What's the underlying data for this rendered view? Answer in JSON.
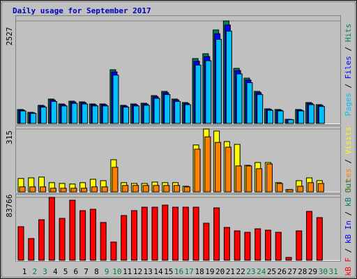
{
  "chart_data": {
    "type": "bar",
    "title": "Daily usage for September 2017",
    "categories": [
      "1",
      "2",
      "3",
      "4",
      "5",
      "6",
      "7",
      "8",
      "9",
      "10",
      "11",
      "12",
      "13",
      "14",
      "15",
      "16",
      "17",
      "18",
      "19",
      "20",
      "21",
      "22",
      "23",
      "24",
      "25",
      "26",
      "27",
      "28",
      "29",
      "30",
      "31"
    ],
    "weekend": [
      "2",
      "3",
      "9",
      "10",
      "16",
      "17",
      "23",
      "24",
      "30",
      "31"
    ],
    "weekend_color": "#008040",
    "legend_separator": " / ",
    "panels": [
      {
        "ylim": [
          0,
          2527
        ],
        "yticks": [
          2527
        ],
        "series": [
          {
            "name": "Pages",
            "color": "#00c0ff",
            "values": [
              310,
              248,
              402,
              542,
              433,
              495,
              480,
              433,
              433,
              1192,
              402,
              433,
              449,
              619,
              712,
              542,
              464,
              1439,
              1547,
              2074,
              2274,
              1222,
              1005,
              712,
              325,
              310,
              93,
              310,
              464,
              418,
              0
            ]
          },
          {
            "name": "Files",
            "color": "#0000ff",
            "values": [
              330,
              264,
              429,
              578,
              462,
              528,
              512,
              462,
              462,
              1271,
              429,
              462,
              479,
              660,
              759,
              578,
              495,
              1535,
              1650,
              2212,
              2426,
              1304,
              1072,
              759,
              347,
              330,
              99,
              330,
              495,
              445,
              0
            ]
          },
          {
            "name": "Hits",
            "color": "#00805c",
            "values": [
              344,
              275,
              447,
              602,
              481,
              550,
              533,
              481,
              481,
              1324,
              447,
              481,
              499,
              688,
              791,
              602,
              516,
              1599,
              1719,
              2304,
              2527,
              1358,
              1117,
              791,
              361,
              344,
              103,
              344,
              516,
              464,
              0
            ]
          }
        ]
      },
      {
        "ylim": [
          0,
          315
        ],
        "yticks": [
          315
        ],
        "series": [
          {
            "name": "Sites",
            "color": "#ff8000",
            "values": [
              25,
              25,
              25,
              18,
              18,
              18,
              18,
              25,
              25,
              123,
              32,
              32,
              32,
              32,
              32,
              32,
              25,
              214,
              276,
              248,
              224,
              130,
              130,
              116,
              140,
              42,
              11,
              28,
              46,
              42,
              0
            ]
          },
          {
            "name": "Visits",
            "color": "#ffff00",
            "values": [
              67,
              70,
              74,
              46,
              42,
              39,
              46,
              63,
              56,
              161,
              46,
              42,
              42,
              49,
              46,
              46,
              28,
              235,
              315,
              305,
              252,
              238,
              133,
              147,
              147,
              46,
              11,
              56,
              70,
              56,
              0
            ]
          }
        ]
      },
      {
        "ylim": [
          0,
          83766
        ],
        "yticks": [
          83766
        ],
        "series": [
          {
            "name": "kB F",
            "color": "#ff0000",
            "values": [
              44700,
              28900,
              54000,
              83766,
              55800,
              80000,
              66100,
              67900,
              50300,
              24200,
              59600,
              66100,
              70700,
              70700,
              73500,
              70700,
              70700,
              70700,
              49300,
              69800,
              43700,
              39100,
              37200,
              41900,
              40000,
              37200,
              3700,
              39100,
              65100,
              56800,
              0
            ]
          }
        ],
        "extra_legend": [
          {
            "name": "kB In",
            "color": "#0000ff"
          },
          {
            "name": "kB Out",
            "color": "#00805c"
          }
        ]
      }
    ]
  }
}
